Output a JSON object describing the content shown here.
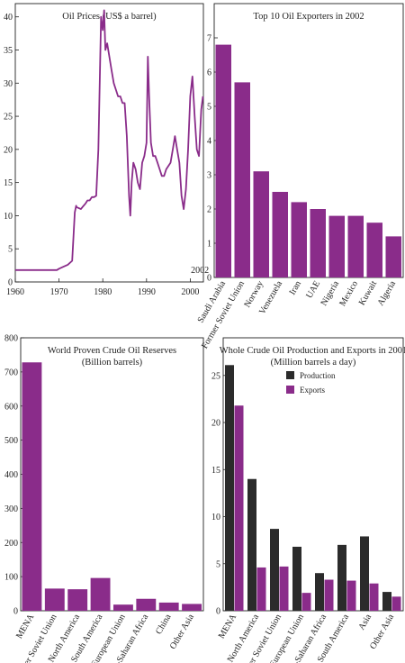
{
  "colors": {
    "purple": "#8a2c8a",
    "dark": "#2b2b2b"
  },
  "chart_data": [
    {
      "id": "oil-prices",
      "type": "line",
      "title": "Oil Prices (US$ a barrel)",
      "xlim": [
        1960,
        2003
      ],
      "ylim": [
        0,
        42
      ],
      "x_ticks": [
        "1960",
        "1970",
        "1980",
        "1990",
        "2000"
      ],
      "x_tick_values": [
        1960,
        1970,
        1980,
        1990,
        2000
      ],
      "x_extra_label": "2002",
      "x_extra_value": 2002,
      "y_ticks": [
        0,
        5,
        10,
        15,
        20,
        25,
        30,
        35,
        40
      ],
      "series": [
        {
          "color": "#8a2c8a",
          "x": [
            1960,
            1969.5,
            1970,
            1971,
            1972,
            1973,
            1973.6,
            1973.9,
            1974,
            1975,
            1975.5,
            1976,
            1976.5,
            1977,
            1977.5,
            1978,
            1978.5,
            1979,
            1979.3,
            1979.6,
            1980,
            1980.3,
            1980.6,
            1981,
            1981.5,
            1982,
            1982.5,
            1983,
            1983.5,
            1984,
            1984.5,
            1985,
            1985.5,
            1986,
            1986.3,
            1986.6,
            1987,
            1987.5,
            1988,
            1988.5,
            1989,
            1989.5,
            1990,
            1990.3,
            1990.6,
            1991,
            1991.5,
            1992,
            1992.5,
            1993,
            1993.5,
            1994,
            1994.5,
            1995,
            1995.5,
            1996,
            1996.5,
            1997,
            1997.5,
            1998,
            1998.5,
            1999,
            1999.5,
            2000,
            2000.5,
            2001,
            2001.5,
            2002,
            2002.5,
            2002.9
          ],
          "y": [
            1.8,
            1.8,
            2.0,
            2.3,
            2.6,
            3.2,
            10.5,
            11.5,
            11.3,
            11.0,
            11.4,
            11.8,
            12.3,
            12.3,
            12.8,
            12.8,
            13.0,
            20,
            30,
            40,
            38,
            41,
            35,
            36,
            34,
            32,
            30,
            29,
            28,
            28,
            27,
            27,
            22,
            13,
            10,
            15,
            18,
            17,
            15,
            14,
            18,
            19,
            21,
            34,
            28,
            21,
            19,
            19,
            18,
            17,
            16,
            16,
            17,
            17.5,
            18,
            20,
            22,
            20,
            18,
            13,
            11,
            14,
            20,
            28,
            31,
            25,
            20,
            19,
            26,
            28
          ]
        }
      ]
    },
    {
      "id": "top-exporters",
      "type": "bar",
      "title": "Top 10 Oil Exporters in 2002",
      "categories": [
        "Saudi Arabia",
        "Former Soviet Union",
        "Norway",
        "Venezuela",
        "Iran",
        "UAE",
        "Nigeria",
        "Mexico",
        "Kuwait",
        "Algeria"
      ],
      "values": [
        6.8,
        5.7,
        3.1,
        2.5,
        2.2,
        2.0,
        1.8,
        1.8,
        1.6,
        1.2
      ],
      "ylim": [
        0,
        8
      ],
      "y_ticks": [
        0,
        1,
        2,
        3,
        4,
        5,
        6,
        7
      ]
    },
    {
      "id": "crude-reserves",
      "type": "bar",
      "title": "World Proven Crude Oil Reserves",
      "subtitle": "(Billion barrels)",
      "categories": [
        "MENA",
        "Former Soviet Union",
        "North America",
        "South America",
        "European Union",
        "Sub-Saharan Africa",
        "China",
        "Other Asia"
      ],
      "values": [
        728,
        65,
        63,
        96,
        18,
        35,
        24,
        20
      ],
      "ylim": [
        0,
        800
      ],
      "y_ticks": [
        0,
        100,
        200,
        300,
        400,
        500,
        600,
        700,
        800
      ]
    },
    {
      "id": "production-exports",
      "type": "bar",
      "title": "Whole Crude Oil Production and Exports in 2001",
      "subtitle": "(Million barrels a day)",
      "categories": [
        "MENA",
        "North America",
        "Former Soviet Union",
        "European Union",
        "Sub-Saharan Africa",
        "South America",
        "Asia",
        "Other Asia"
      ],
      "ylim": [
        0,
        29
      ],
      "y_ticks": [
        0,
        5,
        10,
        15,
        20,
        25
      ],
      "legend_position": "top-right",
      "series": [
        {
          "name": "Production",
          "color": "#2b2b2b",
          "values": [
            26.1,
            14.0,
            8.7,
            6.8,
            4.0,
            7.0,
            7.9,
            2.0
          ]
        },
        {
          "name": "Exports",
          "color": "#8a2c8a",
          "values": [
            21.8,
            4.6,
            4.7,
            1.9,
            3.3,
            3.2,
            2.9,
            1.5
          ]
        }
      ]
    }
  ]
}
